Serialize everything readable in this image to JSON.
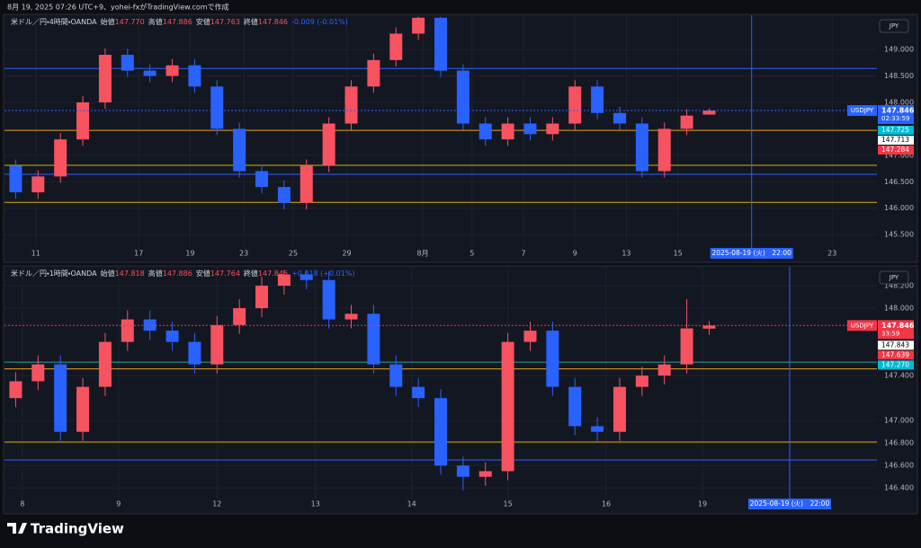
{
  "header": {
    "text": "8月 19, 2025 07:26 UTC+9、yohei-fxがTradingView.comで作成"
  },
  "footer": {
    "brand": "TradingView"
  },
  "chart_data": [
    {
      "type": "candlestick",
      "title": "米ドル／円・4時間・OANDA",
      "currency": "JPY",
      "symbol": "USDJPY",
      "ohlc": [
        {
          "label": "始値",
          "text": "147.770"
        },
        {
          "label": "高値",
          "text": "147.886"
        },
        {
          "label": "安値",
          "text": "147.763"
        },
        {
          "label": "終値",
          "text": "147.846"
        }
      ],
      "change": "-0.009 (-0.01%)",
      "up_color": "#f7525f",
      "down_color": "#2962ff",
      "price_line_color": "#2962ff",
      "open": [
        146.8,
        146.3,
        146.6,
        147.3,
        148.0,
        148.9,
        148.6,
        148.5,
        148.7,
        148.3,
        147.5,
        146.7,
        146.4,
        146.1,
        146.8,
        147.6,
        148.3,
        148.8,
        149.3,
        149.6,
        148.6,
        147.6,
        147.3,
        147.6,
        147.4,
        147.6,
        148.3,
        147.8,
        147.6,
        146.7,
        147.5,
        147.77
      ],
      "high": [
        146.92,
        146.72,
        147.42,
        148.12,
        149.02,
        149.02,
        148.72,
        148.82,
        148.82,
        148.42,
        147.62,
        146.82,
        146.52,
        146.92,
        147.72,
        148.42,
        148.92,
        149.42,
        149.62,
        149.62,
        148.72,
        147.72,
        147.72,
        147.72,
        147.72,
        148.42,
        148.42,
        147.92,
        147.72,
        147.62,
        147.87,
        147.886
      ],
      "low": [
        146.18,
        146.18,
        146.48,
        147.18,
        147.88,
        148.48,
        148.38,
        148.38,
        148.18,
        147.38,
        146.58,
        146.28,
        145.98,
        145.98,
        146.68,
        147.48,
        148.18,
        148.68,
        149.18,
        148.48,
        147.48,
        147.18,
        147.18,
        147.28,
        147.28,
        147.48,
        147.68,
        147.48,
        146.58,
        146.58,
        147.38,
        147.763
      ],
      "close": [
        146.3,
        146.6,
        147.3,
        148.0,
        148.9,
        148.6,
        148.5,
        148.7,
        148.3,
        147.5,
        146.7,
        146.4,
        146.1,
        146.8,
        147.6,
        148.3,
        148.8,
        149.3,
        149.6,
        148.6,
        147.6,
        147.3,
        147.6,
        147.4,
        147.6,
        148.3,
        147.8,
        147.6,
        146.7,
        147.5,
        147.75,
        147.846
      ],
      "xlim": [
        -0.5,
        38.5
      ],
      "ylim": [
        145.35,
        149.63
      ],
      "xticks": [
        {
          "value": 0.9,
          "label": "11"
        },
        {
          "value": 5.5,
          "label": "17"
        },
        {
          "value": 7.8,
          "label": "19"
        },
        {
          "value": 10.2,
          "label": "23"
        },
        {
          "value": 12.4,
          "label": "25"
        },
        {
          "value": 14.8,
          "label": "29"
        },
        {
          "value": 18.2,
          "label": "8月"
        },
        {
          "value": 20.4,
          "label": "5"
        },
        {
          "value": 22.7,
          "label": "7"
        },
        {
          "value": 25.0,
          "label": "9"
        },
        {
          "value": 27.3,
          "label": "13"
        },
        {
          "value": 29.6,
          "label": "15"
        },
        {
          "value": 36.5,
          "label": "23"
        }
      ],
      "yticks": [
        {
          "value": 149,
          "label": "149.000"
        },
        {
          "value": 148.5,
          "label": "148.500"
        },
        {
          "value": 148,
          "label": "148.000"
        },
        {
          "value": 147,
          "label": "147.000"
        },
        {
          "value": 146.5,
          "label": "146.500"
        },
        {
          "value": 146,
          "label": "146.000"
        },
        {
          "value": 145.5,
          "label": "145.500"
        }
      ],
      "grid": true,
      "hlines": [
        {
          "value": 148.64,
          "color": "#2962ff"
        },
        {
          "value": 147.47,
          "color": "#f0a020"
        },
        {
          "value": 146.81,
          "color": "#d4b000"
        },
        {
          "value": 146.64,
          "color": "#2962ff"
        },
        {
          "value": 146.11,
          "color": "#d4b000"
        }
      ],
      "countdown": "02:33:59",
      "price_labels": [
        {
          "text": "147.725",
          "color": "#00bcd4"
        },
        {
          "text": "147.713",
          "color": "#ffffff"
        },
        {
          "text": "147.284",
          "color": "#f23645"
        }
      ],
      "cursor": {
        "x": 32.9,
        "label": "2025-08-19 (火)　22:00"
      }
    },
    {
      "type": "candlestick",
      "title": "米ドル／円・1時間・OANDA",
      "currency": "JPY",
      "symbol": "USDJPY",
      "ohlc": [
        {
          "label": "始値",
          "text": "147.818"
        },
        {
          "label": "高値",
          "text": "147.886"
        },
        {
          "label": "安値",
          "text": "147.764"
        },
        {
          "label": "終値",
          "text": "147.846"
        }
      ],
      "change": "+0.018 (+0.01%)",
      "up_color": "#f7525f",
      "down_color": "#2962ff",
      "price_line_color": "#f23645",
      "open": [
        147.2,
        147.35,
        147.5,
        146.9,
        147.3,
        147.7,
        147.9,
        147.8,
        147.7,
        147.5,
        147.85,
        148.0,
        148.2,
        148.3,
        148.25,
        147.9,
        147.95,
        147.5,
        147.3,
        147.2,
        146.6,
        146.5,
        146.55,
        147.7,
        147.8,
        147.3,
        146.95,
        146.9,
        147.3,
        147.4,
        147.5,
        147.818
      ],
      "high": [
        147.43,
        147.58,
        147.58,
        147.38,
        147.78,
        147.98,
        147.98,
        147.88,
        147.78,
        147.93,
        148.08,
        148.28,
        148.34,
        148.34,
        148.33,
        148.03,
        148.03,
        147.58,
        147.38,
        147.28,
        146.68,
        146.63,
        147.78,
        147.88,
        147.88,
        147.38,
        147.03,
        147.38,
        147.48,
        147.58,
        148.08,
        147.886
      ],
      "low": [
        147.12,
        147.27,
        146.82,
        146.82,
        147.22,
        147.62,
        147.72,
        147.62,
        147.42,
        147.42,
        147.77,
        147.92,
        148.12,
        148.17,
        147.82,
        147.82,
        147.42,
        147.22,
        147.12,
        146.52,
        146.38,
        146.42,
        146.47,
        147.62,
        147.22,
        146.87,
        146.82,
        146.82,
        147.22,
        147.32,
        147.42,
        147.764
      ],
      "close": [
        147.35,
        147.5,
        146.9,
        147.3,
        147.7,
        147.9,
        147.8,
        147.7,
        147.5,
        147.85,
        148.0,
        148.2,
        148.3,
        148.25,
        147.9,
        147.95,
        147.5,
        147.3,
        147.2,
        146.6,
        146.5,
        146.55,
        147.7,
        147.8,
        147.3,
        146.95,
        146.9,
        147.3,
        147.4,
        147.5,
        147.82,
        147.846
      ],
      "xlim": [
        -0.5,
        38.5
      ],
      "ylim": [
        146.33,
        148.344
      ],
      "xticks": [
        {
          "value": 0.3,
          "label": "8"
        },
        {
          "value": 4.6,
          "label": "9"
        },
        {
          "value": 9.0,
          "label": "12"
        },
        {
          "value": 13.4,
          "label": "13"
        },
        {
          "value": 17.7,
          "label": "14"
        },
        {
          "value": 22.0,
          "label": "15"
        },
        {
          "value": 26.4,
          "label": "16"
        },
        {
          "value": 30.7,
          "label": "19"
        }
      ],
      "yticks": [
        {
          "value": 148.2,
          "label": "148.200"
        },
        {
          "value": 148,
          "label": "148.000"
        },
        {
          "value": 147.4,
          "label": "147.400"
        },
        {
          "value": 147,
          "label": "147.000"
        },
        {
          "value": 146.8,
          "label": "146.800"
        },
        {
          "value": 146.6,
          "label": "146.600"
        },
        {
          "value": 146.4,
          "label": "146.400"
        }
      ],
      "grid": true,
      "hlines": [
        {
          "value": 147.52,
          "color": "#26a69a"
        },
        {
          "value": 147.46,
          "color": "#f0a020"
        },
        {
          "value": 146.81,
          "color": "#d4b000"
        },
        {
          "value": 146.65,
          "color": "#2962ff"
        }
      ],
      "countdown": "33:59",
      "price_labels": [
        {
          "text": "147.843",
          "color": "#ffffff"
        },
        {
          "text": "147.639",
          "color": "#f23645"
        },
        {
          "text": "147.270",
          "color": "#00bcd4"
        }
      ],
      "cursor": {
        "x": 34.6,
        "label": "2025-08-19 (火)　22:00"
      }
    }
  ]
}
